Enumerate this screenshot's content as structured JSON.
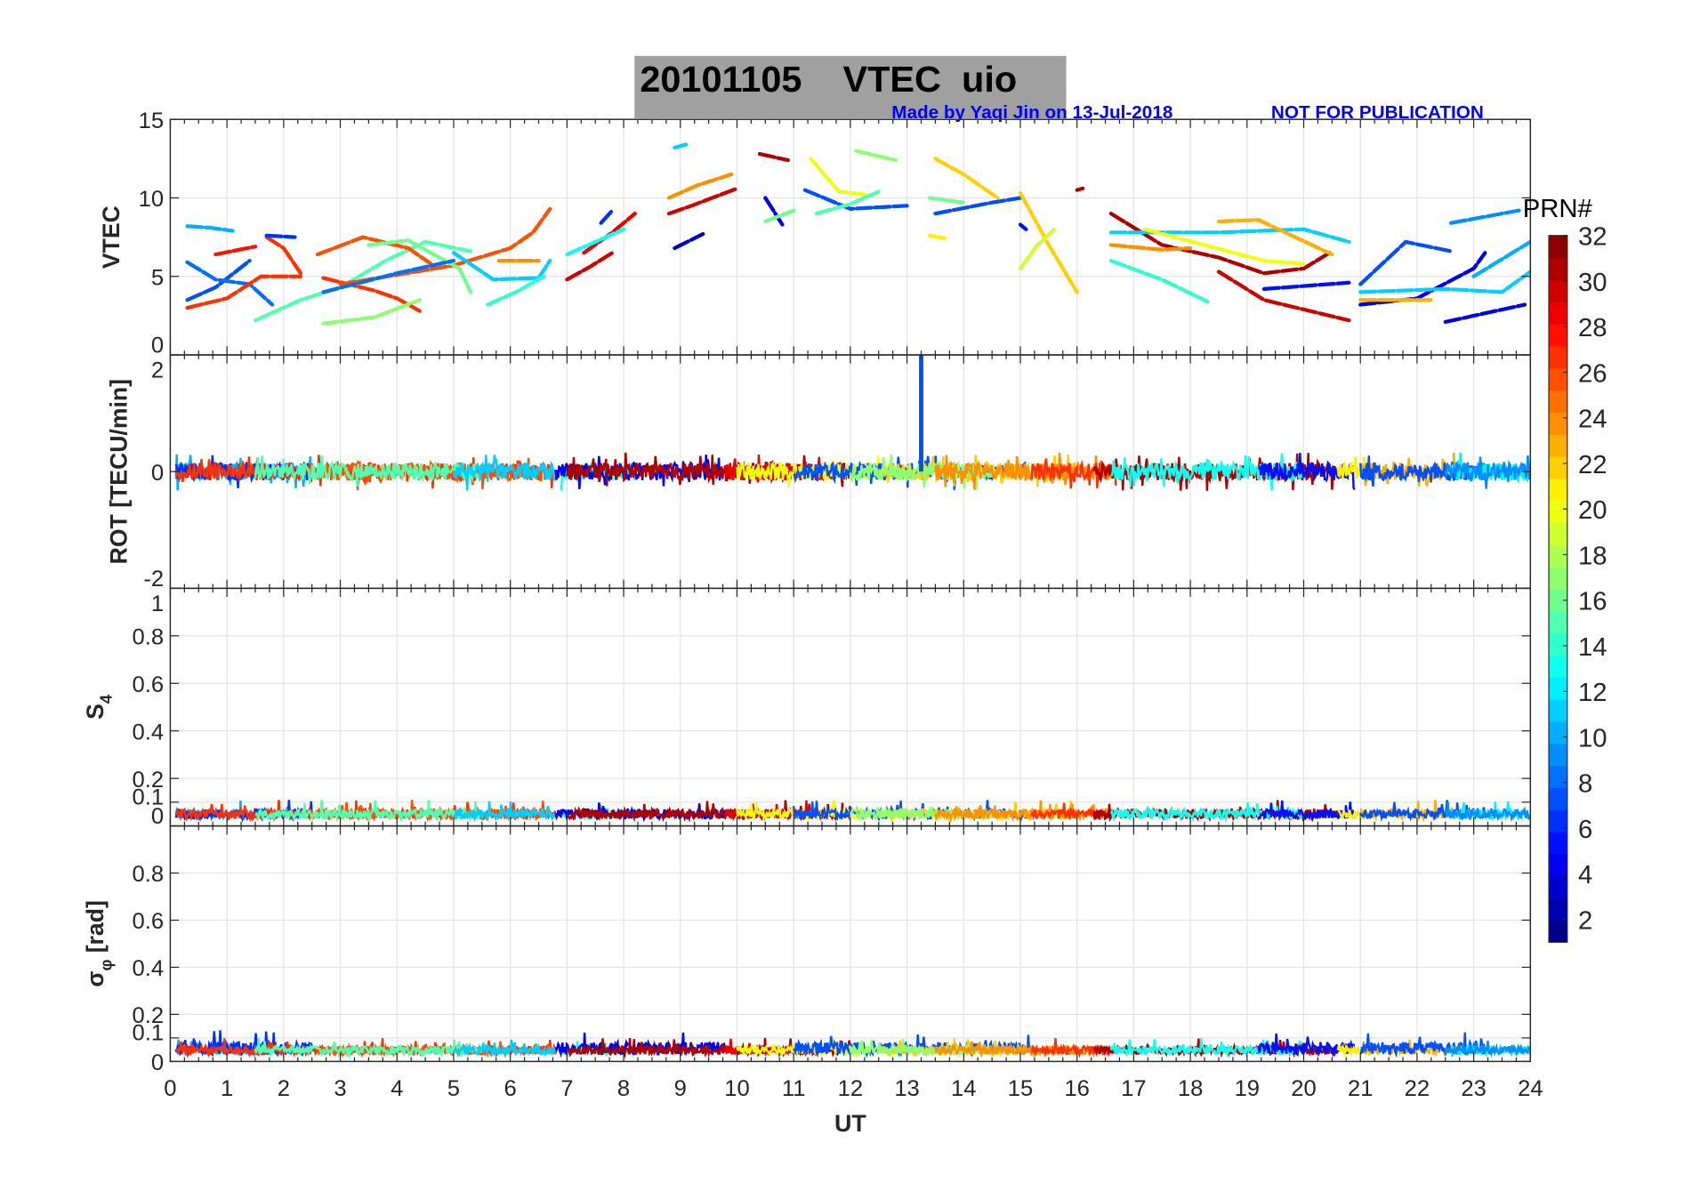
{
  "chart_data": {
    "type": "line",
    "title": "20101105    VTEC  uio",
    "credit": "Made by Yaqi Jin on 13-Jul-2018",
    "notice": "NOT FOR PUBLICATION",
    "xlabel": "UT",
    "xlim": [
      0,
      24
    ],
    "xticks": [
      "0",
      "1",
      "2",
      "3",
      "4",
      "5",
      "6",
      "7",
      "8",
      "9",
      "10",
      "11",
      "12",
      "13",
      "14",
      "15",
      "16",
      "17",
      "18",
      "19",
      "20",
      "21",
      "22",
      "23",
      "24"
    ],
    "grid": true,
    "colorbar": {
      "label": "PRN#",
      "range": [
        1,
        32
      ],
      "ticks": [
        "2",
        "4",
        "6",
        "8",
        "10",
        "12",
        "14",
        "16",
        "18",
        "20",
        "22",
        "24",
        "26",
        "28",
        "30",
        "32"
      ],
      "colormap": "jet"
    },
    "panels": [
      {
        "id": "vtec",
        "ylabel": "VTEC",
        "ylim": [
          0,
          15
        ],
        "ticks": [
          0,
          5,
          10,
          15
        ],
        "tick_labels": [
          "0",
          "5",
          "10",
          "15"
        ]
      },
      {
        "id": "rot",
        "ylabel": "ROT [TECU/min]",
        "ylim": [
          -2,
          2
        ],
        "ticks": [
          -2,
          0,
          2
        ],
        "tick_labels": [
          "-2",
          "0",
          "2"
        ]
      },
      {
        "id": "s4",
        "ylabel": "S",
        "ylabel_sub": "4",
        "ylim": [
          0,
          1
        ],
        "ticks": [
          0,
          0.1,
          0.2,
          0.4,
          0.6,
          0.8,
          1
        ],
        "tick_labels": [
          "0",
          "0.1",
          "0.2",
          "0.4",
          "0.6",
          "0.8",
          "1"
        ]
      },
      {
        "id": "sigma",
        "ylabel": "σ",
        "ylabel_sub": "φ",
        "ylabel_suffix": "[rad]",
        "ylim": [
          0,
          1
        ],
        "ticks": [
          0,
          0.1,
          0.2,
          0.4,
          0.6,
          0.8,
          1
        ],
        "tick_labels": [
          "0",
          "0.1",
          "0.2",
          "0.4",
          "0.6",
          "0.8",
          ""
        ]
      }
    ],
    "vtec_arcs": [
      {
        "prn": 10,
        "points": [
          [
            0.3,
            8.2
          ],
          [
            0.7,
            8.1
          ],
          [
            1.1,
            7.9
          ]
        ]
      },
      {
        "prn": 7,
        "points": [
          [
            0.3,
            3.5
          ],
          [
            0.8,
            4.3
          ],
          [
            1.4,
            6.0
          ]
        ]
      },
      {
        "prn": 8,
        "points": [
          [
            0.3,
            5.9
          ],
          [
            0.8,
            4.8
          ],
          [
            1.4,
            4.5
          ],
          [
            1.8,
            3.2
          ]
        ]
      },
      {
        "prn": 27,
        "points": [
          [
            0.3,
            3.0
          ],
          [
            1.0,
            3.6
          ],
          [
            1.6,
            5.0
          ],
          [
            2.3,
            5.0
          ]
        ]
      },
      {
        "prn": 28,
        "points": [
          [
            0.8,
            6.4
          ],
          [
            1.5,
            6.9
          ]
        ]
      },
      {
        "prn": 27,
        "points": [
          [
            1.7,
            7.5
          ],
          [
            2.0,
            6.8
          ],
          [
            2.3,
            5.2
          ]
        ]
      },
      {
        "prn": 6,
        "points": [
          [
            1.7,
            7.6
          ],
          [
            2.2,
            7.5
          ]
        ]
      },
      {
        "prn": 15,
        "points": [
          [
            1.5,
            2.2
          ],
          [
            2.3,
            3.5
          ],
          [
            3.0,
            4.3
          ],
          [
            3.8,
            6.0
          ],
          [
            4.5,
            7.2
          ],
          [
            5.3,
            6.6
          ]
        ]
      },
      {
        "prn": 26,
        "points": [
          [
            2.6,
            6.4
          ],
          [
            3.4,
            7.5
          ],
          [
            4.2,
            6.8
          ],
          [
            4.6,
            5.8
          ]
        ]
      },
      {
        "prn": 27,
        "points": [
          [
            2.7,
            4.9
          ],
          [
            3.6,
            4.1
          ],
          [
            4.0,
            3.6
          ],
          [
            4.4,
            2.8
          ]
        ]
      },
      {
        "prn": 26,
        "points": [
          [
            3.0,
            4.5
          ],
          [
            5.0,
            5.7
          ],
          [
            6.0,
            6.8
          ],
          [
            6.4,
            7.8
          ],
          [
            6.7,
            9.3
          ]
        ]
      },
      {
        "prn": 17,
        "points": [
          [
            2.7,
            2.0
          ],
          [
            3.6,
            2.4
          ],
          [
            4.4,
            3.5
          ]
        ]
      },
      {
        "prn": 16,
        "points": [
          [
            3.5,
            7.0
          ],
          [
            4.2,
            7.3
          ],
          [
            5.1,
            5.5
          ],
          [
            5.3,
            4.0
          ]
        ]
      },
      {
        "prn": 11,
        "points": [
          [
            5.0,
            6.5
          ],
          [
            5.7,
            4.8
          ],
          [
            6.5,
            4.9
          ],
          [
            6.7,
            6.0
          ]
        ]
      },
      {
        "prn": 14,
        "points": [
          [
            5.6,
            3.2
          ],
          [
            6.1,
            4.0
          ],
          [
            6.6,
            5.0
          ]
        ]
      },
      {
        "prn": 8,
        "points": [
          [
            2.7,
            4.0
          ],
          [
            4.0,
            5.2
          ],
          [
            5.0,
            6.0
          ]
        ]
      },
      {
        "prn": 24,
        "points": [
          [
            5.8,
            6.0
          ],
          [
            6.5,
            6.0
          ]
        ]
      },
      {
        "prn": 29,
        "points": [
          [
            7.3,
            6.5
          ],
          [
            7.8,
            7.8
          ],
          [
            8.2,
            9.0
          ]
        ]
      },
      {
        "prn": 30,
        "points": [
          [
            7.0,
            4.8
          ],
          [
            7.4,
            5.6
          ],
          [
            7.8,
            6.5
          ]
        ]
      },
      {
        "prn": 13,
        "points": [
          [
            7.0,
            6.4
          ],
          [
            7.5,
            7.2
          ],
          [
            8.0,
            8.0
          ]
        ]
      },
      {
        "prn": 6,
        "points": [
          [
            7.6,
            8.4
          ],
          [
            7.8,
            9.2
          ]
        ]
      },
      {
        "prn": 24,
        "points": [
          [
            8.8,
            10.0
          ],
          [
            9.3,
            10.8
          ],
          [
            9.9,
            11.5
          ]
        ]
      },
      {
        "prn": 30,
        "points": [
          [
            8.8,
            9.0
          ],
          [
            9.2,
            9.5
          ],
          [
            10.0,
            10.6
          ]
        ]
      },
      {
        "prn": 11,
        "points": [
          [
            8.9,
            13.2
          ],
          [
            9.1,
            13.4
          ]
        ]
      },
      {
        "prn": 3,
        "points": [
          [
            8.9,
            6.8
          ],
          [
            9.4,
            7.7
          ]
        ]
      },
      {
        "prn": 31,
        "points": [
          [
            10.4,
            12.8
          ],
          [
            10.9,
            12.4
          ]
        ]
      },
      {
        "prn": 4,
        "points": [
          [
            10.5,
            10.0
          ],
          [
            10.8,
            8.3
          ]
        ]
      },
      {
        "prn": 16,
        "points": [
          [
            10.5,
            8.5
          ],
          [
            11.0,
            9.2
          ]
        ]
      },
      {
        "prn": 20,
        "points": [
          [
            11.3,
            12.5
          ],
          [
            11.8,
            10.4
          ],
          [
            12.3,
            10.2
          ]
        ]
      },
      {
        "prn": 7,
        "points": [
          [
            11.2,
            10.5
          ],
          [
            12.0,
            9.3
          ],
          [
            13.0,
            9.5
          ]
        ]
      },
      {
        "prn": 17,
        "points": [
          [
            12.1,
            13.0
          ],
          [
            12.8,
            12.4
          ]
        ]
      },
      {
        "prn": 15,
        "points": [
          [
            11.4,
            9.0
          ],
          [
            12.0,
            9.6
          ],
          [
            12.5,
            10.4
          ]
        ]
      },
      {
        "prn": 22,
        "points": [
          [
            13.5,
            12.5
          ],
          [
            14.0,
            11.5
          ],
          [
            14.6,
            10.0
          ]
        ]
      },
      {
        "prn": 7,
        "points": [
          [
            13.5,
            9.0
          ],
          [
            14.5,
            9.7
          ],
          [
            15.0,
            10.0
          ]
        ]
      },
      {
        "prn": 16,
        "points": [
          [
            13.4,
            10.0
          ],
          [
            14.0,
            9.7
          ]
        ]
      },
      {
        "prn": 21,
        "points": [
          [
            13.4,
            7.6
          ],
          [
            13.7,
            7.4
          ]
        ]
      },
      {
        "prn": 22,
        "points": [
          [
            15.0,
            10.3
          ],
          [
            15.5,
            7.0
          ],
          [
            16.0,
            4.0
          ]
        ]
      },
      {
        "prn": 19,
        "points": [
          [
            15.0,
            5.5
          ],
          [
            15.3,
            7.0
          ],
          [
            15.6,
            8.0
          ]
        ]
      },
      {
        "prn": 5,
        "points": [
          [
            15.0,
            8.3
          ],
          [
            15.1,
            8.0
          ]
        ]
      },
      {
        "prn": 31,
        "points": [
          [
            16.0,
            10.5
          ],
          [
            16.1,
            10.6
          ]
        ]
      },
      {
        "prn": 31,
        "points": [
          [
            16.6,
            9.0
          ],
          [
            17.5,
            7.0
          ],
          [
            18.5,
            6.2
          ],
          [
            19.3,
            5.2
          ],
          [
            20.0,
            5.5
          ],
          [
            20.5,
            6.6
          ]
        ]
      },
      {
        "prn": 14,
        "points": [
          [
            16.6,
            6.0
          ],
          [
            17.5,
            4.8
          ],
          [
            18.3,
            3.4
          ]
        ]
      },
      {
        "prn": 11,
        "points": [
          [
            16.6,
            7.8
          ],
          [
            18.5,
            7.8
          ],
          [
            20.0,
            8.0
          ],
          [
            20.8,
            7.2
          ]
        ]
      },
      {
        "prn": 23,
        "points": [
          [
            18.5,
            8.5
          ],
          [
            19.2,
            8.6
          ],
          [
            20.5,
            6.4
          ]
        ]
      },
      {
        "prn": 20,
        "points": [
          [
            17.2,
            8.0
          ],
          [
            19.3,
            6.0
          ],
          [
            20.0,
            5.8
          ]
        ]
      },
      {
        "prn": 30,
        "points": [
          [
            18.5,
            5.3
          ],
          [
            19.3,
            3.5
          ],
          [
            20.8,
            2.2
          ]
        ]
      },
      {
        "prn": 5,
        "points": [
          [
            19.3,
            4.2
          ],
          [
            20.8,
            4.6
          ]
        ]
      },
      {
        "prn": 24,
        "points": [
          [
            16.6,
            7.0
          ],
          [
            17.5,
            6.7
          ],
          [
            18.0,
            6.8
          ]
        ]
      },
      {
        "prn": 4,
        "points": [
          [
            21.0,
            3.2
          ],
          [
            22.0,
            3.6
          ],
          [
            23.0,
            5.5
          ],
          [
            23.2,
            6.5
          ]
        ]
      },
      {
        "prn": 7,
        "points": [
          [
            21.0,
            4.5
          ],
          [
            21.8,
            7.2
          ],
          [
            22.6,
            6.6
          ]
        ]
      },
      {
        "prn": 9,
        "points": [
          [
            22.6,
            8.4
          ],
          [
            23.8,
            9.2
          ]
        ]
      },
      {
        "prn": 4,
        "points": [
          [
            22.5,
            2.1
          ],
          [
            23.9,
            3.2
          ]
        ]
      },
      {
        "prn": 11,
        "points": [
          [
            21.0,
            4.0
          ],
          [
            22.5,
            4.2
          ],
          [
            23.5,
            4.0
          ],
          [
            24.0,
            5.3
          ]
        ]
      },
      {
        "prn": 10,
        "points": [
          [
            23.0,
            5.0
          ],
          [
            24.0,
            7.2
          ]
        ]
      },
      {
        "prn": 23,
        "points": [
          [
            21.0,
            3.5
          ],
          [
            22.3,
            3.5
          ]
        ]
      }
    ],
    "passes": [
      {
        "prn": 10,
        "t": [
          0.1,
          2.5
        ]
      },
      {
        "prn": 6,
        "t": [
          0.1,
          2.5
        ]
      },
      {
        "prn": 27,
        "t": [
          0.1,
          6.8
        ]
      },
      {
        "prn": 26,
        "t": [
          2.6,
          6.8
        ]
      },
      {
        "prn": 15,
        "t": [
          1.5,
          5.5
        ]
      },
      {
        "prn": 11,
        "t": [
          5.0,
          6.8
        ]
      },
      {
        "prn": 13,
        "t": [
          6.9,
          8.2
        ]
      },
      {
        "prn": 4,
        "t": [
          6.8,
          9.8
        ]
      },
      {
        "prn": 31,
        "t": [
          7.0,
          12.0
        ]
      },
      {
        "prn": 29,
        "t": [
          9.8,
          11.5
        ]
      },
      {
        "prn": 20,
        "t": [
          10.0,
          13.0
        ]
      },
      {
        "prn": 7,
        "t": [
          11.0,
          15.2
        ]
      },
      {
        "prn": 22,
        "t": [
          12.5,
          16.0
        ]
      },
      {
        "prn": 17,
        "t": [
          12.0,
          14.5
        ]
      },
      {
        "prn": 24,
        "t": [
          13.5,
          16.6
        ]
      },
      {
        "prn": 27,
        "t": [
          15.2,
          16.7
        ]
      },
      {
        "prn": 31,
        "t": [
          16.3,
          20.6
        ]
      },
      {
        "prn": 13,
        "t": [
          16.6,
          20.0
        ]
      },
      {
        "prn": 5,
        "t": [
          19.2,
          20.9
        ]
      },
      {
        "prn": 21,
        "t": [
          20.6,
          21.2
        ]
      },
      {
        "prn": 23,
        "t": [
          21.0,
          22.8
        ]
      },
      {
        "prn": 7,
        "t": [
          21.0,
          23.2
        ]
      },
      {
        "prn": 12,
        "t": [
          22.6,
          24.0
        ]
      },
      {
        "prn": 9,
        "t": [
          22.5,
          24.0
        ]
      }
    ],
    "rot_spike": {
      "prn": 7,
      "t": 13.25,
      "value": 2
    },
    "noise_levels": {
      "rot": 0.3,
      "s4": 0.04,
      "sigma": 0.035
    }
  }
}
